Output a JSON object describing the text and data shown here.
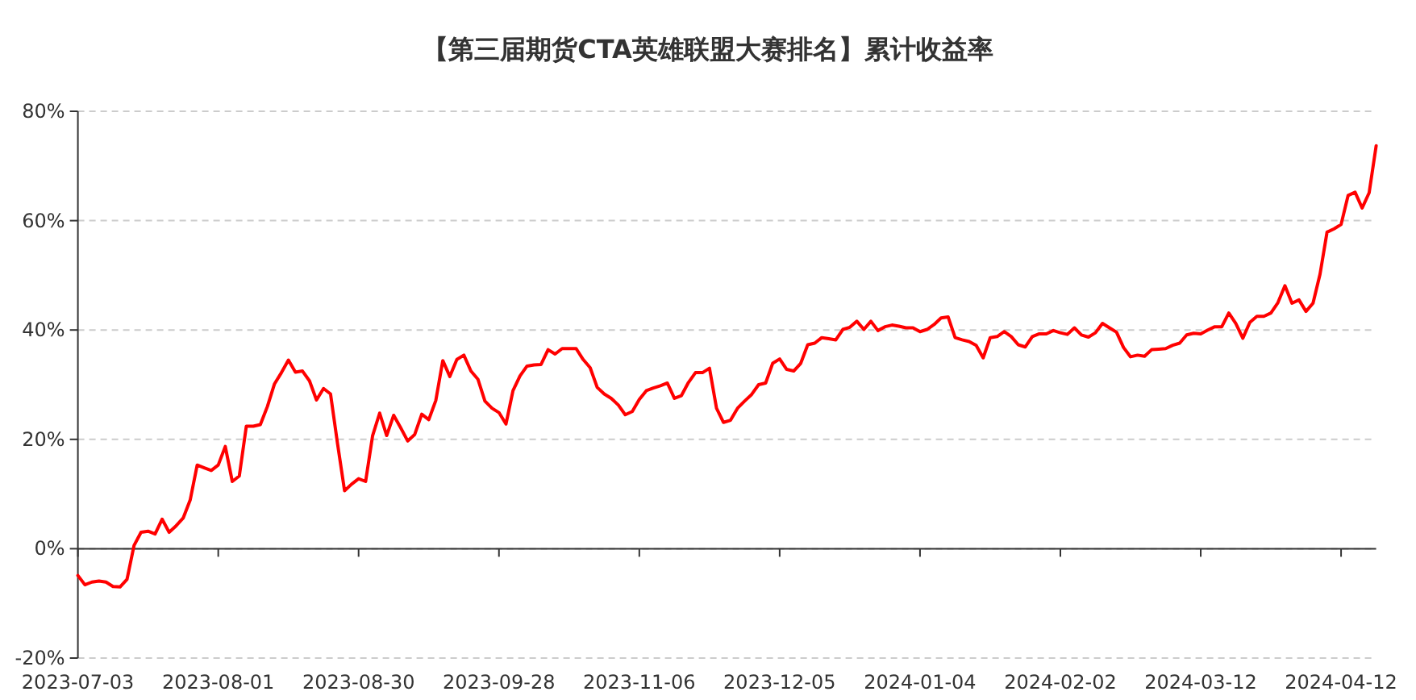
{
  "chart_data": {
    "type": "line",
    "title": "【第三届期货CTA英雄联盟大赛排名】累计收益率",
    "categories": [
      "2023-07-03",
      null,
      null,
      null,
      null,
      null,
      null,
      null,
      null,
      null,
      null,
      null,
      null,
      null,
      null,
      null,
      null,
      null,
      null,
      null,
      "2023-08-01",
      null,
      null,
      null,
      null,
      null,
      null,
      null,
      null,
      null,
      null,
      null,
      null,
      null,
      null,
      null,
      null,
      null,
      null,
      null,
      "2023-08-30",
      null,
      null,
      null,
      null,
      null,
      null,
      null,
      null,
      null,
      null,
      null,
      null,
      null,
      null,
      null,
      null,
      null,
      null,
      null,
      "2023-09-28",
      null,
      null,
      null,
      null,
      null,
      null,
      null,
      null,
      null,
      null,
      null,
      null,
      null,
      null,
      null,
      null,
      null,
      null,
      null,
      "2023-11-06",
      null,
      null,
      null,
      null,
      null,
      null,
      null,
      null,
      null,
      null,
      null,
      null,
      null,
      null,
      null,
      null,
      null,
      null,
      null,
      "2023-12-05",
      null,
      null,
      null,
      null,
      null,
      null,
      null,
      null,
      null,
      null,
      null,
      null,
      null,
      null,
      null,
      null,
      null,
      null,
      null,
      "2024-01-04",
      null,
      null,
      null,
      null,
      null,
      null,
      null,
      null,
      null,
      null,
      null,
      null,
      null,
      null,
      null,
      null,
      null,
      null,
      null,
      "2024-02-02",
      null,
      null,
      null,
      null,
      null,
      null,
      null,
      null,
      null,
      null,
      null,
      null,
      null,
      null,
      null,
      null,
      null,
      null,
      null,
      "2024-03-12",
      null,
      null,
      null,
      null,
      null,
      null,
      null,
      null,
      null,
      null,
      null,
      null,
      null,
      null,
      null,
      null,
      null,
      null,
      null,
      "2024-04-12",
      null,
      null,
      null,
      null,
      null
    ],
    "series": [
      {
        "color": "#ff0000",
        "values": [
          -4.9,
          -6.6,
          -6.1,
          -5.9,
          -6.1,
          -6.9,
          -7.0,
          -5.6,
          0.6,
          3.0,
          3.2,
          2.7,
          5.4,
          3.0,
          4.2,
          5.6,
          8.9,
          15.3,
          14.8,
          14.3,
          15.3,
          18.7,
          12.3,
          13.3,
          22.4,
          22.4,
          22.7,
          26.0,
          30.1,
          32.2,
          34.5,
          32.3,
          32.5,
          30.7,
          27.2,
          29.3,
          28.3,
          19.2,
          10.6,
          11.8,
          12.8,
          12.3,
          20.7,
          24.8,
          20.7,
          24.4,
          22.1,
          19.7,
          20.9,
          24.6,
          23.6,
          27.1,
          34.4,
          31.5,
          34.6,
          35.4,
          32.5,
          31.0,
          27.0,
          25.7,
          24.9,
          22.8,
          28.9,
          31.6,
          33.4,
          33.6,
          33.7,
          36.4,
          35.6,
          36.6,
          36.6,
          36.6,
          34.6,
          33.1,
          29.5,
          28.3,
          27.5,
          26.3,
          24.5,
          25.1,
          27.3,
          28.9,
          29.4,
          29.8,
          30.3,
          27.5,
          28.0,
          30.4,
          32.2,
          32.2,
          33.0,
          25.7,
          23.1,
          23.5,
          25.7,
          27.0,
          28.2,
          30.0,
          30.3,
          33.9,
          34.7,
          32.8,
          32.5,
          33.9,
          37.3,
          37.6,
          38.6,
          38.4,
          38.2,
          40.1,
          40.5,
          41.6,
          40.1,
          41.6,
          39.9,
          40.6,
          40.9,
          40.7,
          40.4,
          40.4,
          39.7,
          40.1,
          41.0,
          42.2,
          42.4,
          38.6,
          38.2,
          37.9,
          37.2,
          34.9,
          38.6,
          38.8,
          39.7,
          38.8,
          37.3,
          36.9,
          38.8,
          39.3,
          39.3,
          39.9,
          39.5,
          39.2,
          40.4,
          39.1,
          38.7,
          39.5,
          41.2,
          40.4,
          39.6,
          36.8,
          35.1,
          35.4,
          35.2,
          36.4,
          36.5,
          36.6,
          37.2,
          37.6,
          39.1,
          39.4,
          39.3,
          40.0,
          40.6,
          40.6,
          43.1,
          41.2,
          38.5,
          41.4,
          42.5,
          42.5,
          43.1,
          45.0,
          48.1,
          44.9,
          45.5,
          43.4,
          44.9,
          50.2,
          57.9,
          58.5,
          59.3,
          64.6,
          65.2,
          62.3,
          65.1,
          73.7
        ]
      }
    ],
    "ylim": [
      -20,
      80
    ],
    "yticks": [
      {
        "value": -20,
        "label": "-20%"
      },
      {
        "value": 0,
        "label": "0%"
      },
      {
        "value": 20,
        "label": "20%"
      },
      {
        "value": 40,
        "label": "40%"
      },
      {
        "value": 60,
        "label": "60%"
      },
      {
        "value": 80,
        "label": "80%"
      }
    ],
    "grid": "y",
    "line_style": "solid"
  }
}
